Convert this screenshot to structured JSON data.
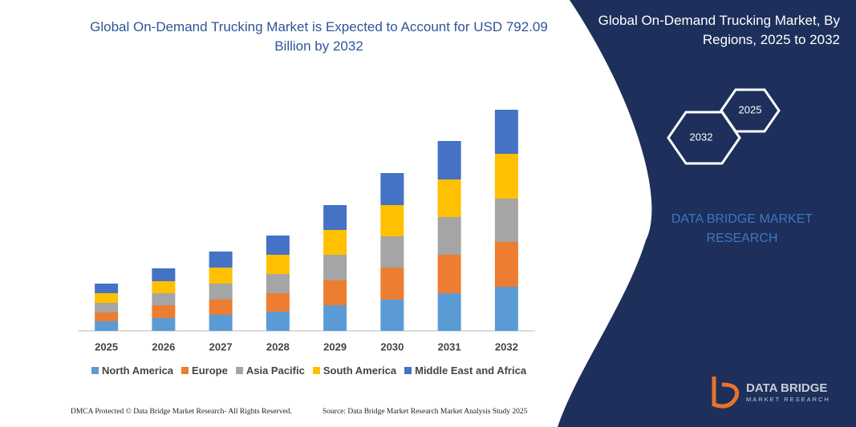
{
  "chart_data": {
    "type": "stacked_bar",
    "title": "Global On-Demand Trucking Market is Expected to Account for USD 792.09 Billion by 2032",
    "categories": [
      "2025",
      "2026",
      "2027",
      "2028",
      "2029",
      "2030",
      "2031",
      "2032"
    ],
    "series": [
      {
        "name": "North America",
        "color": "#5b9bd5",
        "values": [
          12,
          16,
          20,
          24,
          32,
          39,
          47,
          55
        ]
      },
      {
        "name": "Europe",
        "color": "#ed7d31",
        "values": [
          11,
          16,
          19,
          23,
          31,
          40,
          48,
          56
        ]
      },
      {
        "name": "Asia Pacific",
        "color": "#a5a5a5",
        "values": [
          12,
          15,
          20,
          24,
          32,
          39,
          47,
          54
        ]
      },
      {
        "name": "South America",
        "color": "#ffc000",
        "values": [
          12,
          15,
          20,
          24,
          31,
          39,
          47,
          56
        ]
      },
      {
        "name": "Middle East and Africa",
        "color": "#4472c4",
        "values": [
          12,
          16,
          20,
          24,
          31,
          40,
          48,
          55
        ]
      }
    ],
    "ylim": [
      0,
      300
    ]
  },
  "panel": {
    "title": "Global On-Demand Trucking Market, By Regions, 2025 to 2032",
    "hexagons": [
      "2025",
      "2032"
    ],
    "brand": "DATA BRIDGE MARKET RESEARCH",
    "logo_name": "DATA BRIDGE",
    "logo_tagline": "MARKET RESEARCH"
  },
  "footer": {
    "left": "DMCA Protected © Data Bridge Market Research-  All Rights Reserved.",
    "right": "Source: Data Bridge Market Research  Market Analysis Study 2025"
  }
}
